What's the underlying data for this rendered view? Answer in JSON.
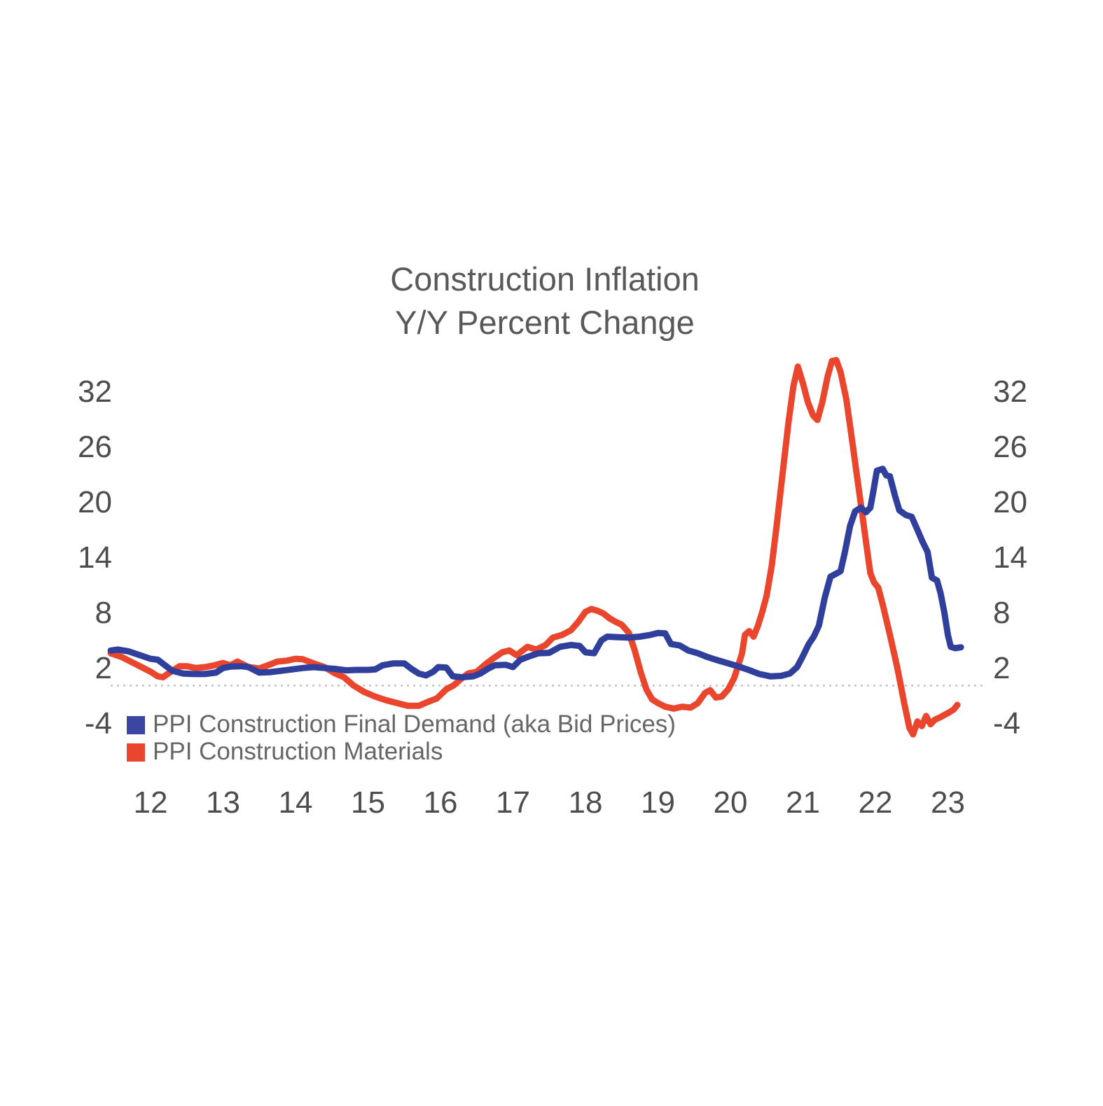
{
  "title": {
    "line1": "Construction Inflation",
    "line2": "Y/Y Percent Change"
  },
  "legend": [
    {
      "label": "PPI Construction Final Demand (aka Bid Prices)",
      "color": "#3a46a0"
    },
    {
      "label": "PPI Construction Materials",
      "color": "#ea452d"
    }
  ],
  "colors": {
    "background": "#ffffff",
    "title_text": "#595959",
    "tick_text": "#4d4d4d",
    "legend_text": "#666666",
    "zero_line": "#c4c4c4",
    "series_blue": "#2f3f9b",
    "series_red": "#ea452d"
  },
  "chart_data": {
    "type": "line",
    "title": "Construction Inflation Y/Y Percent Change",
    "xlabel": "",
    "ylabel": "Y/Y Percent Change",
    "x_ticks": [
      "12",
      "13",
      "14",
      "15",
      "16",
      "17",
      "18",
      "19",
      "20",
      "21",
      "22",
      "23"
    ],
    "x_tick_values": [
      12,
      13,
      14,
      15,
      16,
      17,
      18,
      19,
      20,
      21,
      22,
      23
    ],
    "y_ticks": [
      "32",
      "26",
      "20",
      "14",
      "8",
      "2",
      "-4"
    ],
    "y_tick_values": [
      32,
      26,
      20,
      14,
      8,
      2,
      -4
    ],
    "ylim": [
      -7,
      37
    ],
    "xlim": [
      11.4,
      23.3
    ],
    "grid": false,
    "zero_line": true,
    "legend_position": "bottom-left",
    "y_axis_sides": "both",
    "series": [
      {
        "name": "PPI Construction Final Demand (aka Bid Prices)",
        "color": "#2f3f9b",
        "points": [
          [
            11.45,
            3.8
          ],
          [
            11.55,
            3.9
          ],
          [
            11.7,
            3.7
          ],
          [
            11.85,
            3.3
          ],
          [
            12.0,
            2.9
          ],
          [
            12.1,
            2.8
          ],
          [
            12.2,
            2.2
          ],
          [
            12.3,
            1.6
          ],
          [
            12.45,
            1.3
          ],
          [
            12.6,
            1.25
          ],
          [
            12.75,
            1.25
          ],
          [
            12.9,
            1.4
          ],
          [
            13.0,
            1.9
          ],
          [
            13.1,
            2.05
          ],
          [
            13.25,
            2.1
          ],
          [
            13.35,
            2.0
          ],
          [
            13.5,
            1.4
          ],
          [
            13.65,
            1.45
          ],
          [
            13.8,
            1.6
          ],
          [
            13.95,
            1.75
          ],
          [
            14.1,
            1.9
          ],
          [
            14.25,
            2.0
          ],
          [
            14.4,
            1.9
          ],
          [
            14.55,
            1.8
          ],
          [
            14.7,
            1.65
          ],
          [
            14.85,
            1.7
          ],
          [
            15.0,
            1.7
          ],
          [
            15.1,
            1.75
          ],
          [
            15.2,
            2.2
          ],
          [
            15.35,
            2.4
          ],
          [
            15.5,
            2.4
          ],
          [
            15.6,
            1.8
          ],
          [
            15.7,
            1.3
          ],
          [
            15.8,
            1.1
          ],
          [
            15.9,
            1.5
          ],
          [
            15.97,
            2.0
          ],
          [
            16.08,
            1.95
          ],
          [
            16.17,
            1.0
          ],
          [
            16.3,
            0.9
          ],
          [
            16.45,
            1.0
          ],
          [
            16.55,
            1.3
          ],
          [
            16.65,
            1.8
          ],
          [
            16.75,
            2.2
          ],
          [
            16.9,
            2.25
          ],
          [
            17.0,
            2.0
          ],
          [
            17.1,
            2.8
          ],
          [
            17.2,
            3.1
          ],
          [
            17.35,
            3.5
          ],
          [
            17.5,
            3.55
          ],
          [
            17.65,
            4.2
          ],
          [
            17.8,
            4.4
          ],
          [
            17.92,
            4.3
          ],
          [
            18.0,
            3.6
          ],
          [
            18.12,
            3.5
          ],
          [
            18.22,
            4.9
          ],
          [
            18.3,
            5.3
          ],
          [
            18.45,
            5.25
          ],
          [
            18.6,
            5.2
          ],
          [
            18.75,
            5.3
          ],
          [
            18.9,
            5.5
          ],
          [
            19.0,
            5.7
          ],
          [
            19.1,
            5.65
          ],
          [
            19.18,
            4.5
          ],
          [
            19.3,
            4.35
          ],
          [
            19.42,
            3.8
          ],
          [
            19.55,
            3.5
          ],
          [
            19.68,
            3.1
          ],
          [
            19.8,
            2.8
          ],
          [
            19.95,
            2.45
          ],
          [
            20.1,
            2.1
          ],
          [
            20.25,
            1.7
          ],
          [
            20.4,
            1.25
          ],
          [
            20.55,
            1.0
          ],
          [
            20.7,
            1.05
          ],
          [
            20.82,
            1.3
          ],
          [
            20.92,
            2.0
          ],
          [
            21.0,
            3.2
          ],
          [
            21.08,
            4.5
          ],
          [
            21.15,
            5.3
          ],
          [
            21.22,
            6.5
          ],
          [
            21.3,
            9.5
          ],
          [
            21.38,
            11.8
          ],
          [
            21.45,
            12.1
          ],
          [
            21.52,
            12.4
          ],
          [
            21.58,
            14.5
          ],
          [
            21.65,
            17.3
          ],
          [
            21.72,
            18.9
          ],
          [
            21.8,
            19.3
          ],
          [
            21.87,
            18.8
          ],
          [
            21.93,
            19.3
          ],
          [
            21.97,
            21.0
          ],
          [
            22.02,
            23.3
          ],
          [
            22.1,
            23.5
          ],
          [
            22.15,
            22.8
          ],
          [
            22.2,
            22.7
          ],
          [
            22.27,
            20.6
          ],
          [
            22.33,
            19.0
          ],
          [
            22.42,
            18.5
          ],
          [
            22.5,
            18.3
          ],
          [
            22.58,
            16.9
          ],
          [
            22.65,
            15.6
          ],
          [
            22.72,
            14.5
          ],
          [
            22.78,
            11.7
          ],
          [
            22.85,
            11.4
          ],
          [
            22.9,
            10.0
          ],
          [
            22.95,
            8.0
          ],
          [
            23.0,
            5.5
          ],
          [
            23.04,
            4.2
          ],
          [
            23.1,
            4.05
          ],
          [
            23.18,
            4.15
          ]
        ]
      },
      {
        "name": "PPI Construction Materials",
        "color": "#ea452d",
        "points": [
          [
            11.45,
            3.5
          ],
          [
            11.6,
            3.1
          ],
          [
            11.75,
            2.5
          ],
          [
            11.9,
            1.9
          ],
          [
            12.0,
            1.5
          ],
          [
            12.1,
            1.0
          ],
          [
            12.17,
            0.9
          ],
          [
            12.28,
            1.5
          ],
          [
            12.4,
            2.1
          ],
          [
            12.5,
            2.1
          ],
          [
            12.62,
            1.9
          ],
          [
            12.75,
            2.0
          ],
          [
            12.88,
            2.2
          ],
          [
            13.0,
            2.45
          ],
          [
            13.1,
            2.2
          ],
          [
            13.2,
            2.6
          ],
          [
            13.35,
            2.0
          ],
          [
            13.5,
            1.85
          ],
          [
            13.62,
            2.2
          ],
          [
            13.75,
            2.6
          ],
          [
            13.88,
            2.7
          ],
          [
            14.0,
            2.9
          ],
          [
            14.1,
            2.85
          ],
          [
            14.25,
            2.4
          ],
          [
            14.4,
            2.0
          ],
          [
            14.55,
            1.3
          ],
          [
            14.67,
            0.9
          ],
          [
            14.8,
            0.0
          ],
          [
            14.95,
            -0.7
          ],
          [
            15.1,
            -1.2
          ],
          [
            15.25,
            -1.6
          ],
          [
            15.4,
            -1.9
          ],
          [
            15.55,
            -2.2
          ],
          [
            15.7,
            -2.2
          ],
          [
            15.85,
            -1.7
          ],
          [
            15.95,
            -1.4
          ],
          [
            16.08,
            -0.4
          ],
          [
            16.18,
            0.0
          ],
          [
            16.28,
            0.7
          ],
          [
            16.38,
            1.3
          ],
          [
            16.5,
            1.5
          ],
          [
            16.62,
            2.3
          ],
          [
            16.72,
            2.9
          ],
          [
            16.85,
            3.6
          ],
          [
            16.95,
            3.8
          ],
          [
            17.05,
            3.3
          ],
          [
            17.2,
            4.2
          ],
          [
            17.32,
            3.9
          ],
          [
            17.45,
            4.4
          ],
          [
            17.55,
            5.2
          ],
          [
            17.68,
            5.5
          ],
          [
            17.8,
            6.0
          ],
          [
            17.9,
            6.9
          ],
          [
            18.0,
            8.0
          ],
          [
            18.08,
            8.3
          ],
          [
            18.17,
            8.1
          ],
          [
            18.25,
            7.8
          ],
          [
            18.33,
            7.3
          ],
          [
            18.42,
            6.9
          ],
          [
            18.5,
            6.6
          ],
          [
            18.6,
            5.7
          ],
          [
            18.68,
            3.8
          ],
          [
            18.76,
            1.5
          ],
          [
            18.84,
            -0.4
          ],
          [
            18.92,
            -1.5
          ],
          [
            19.0,
            -1.9
          ],
          [
            19.1,
            -2.3
          ],
          [
            19.22,
            -2.5
          ],
          [
            19.33,
            -2.3
          ],
          [
            19.45,
            -2.4
          ],
          [
            19.55,
            -1.9
          ],
          [
            19.65,
            -0.8
          ],
          [
            19.72,
            -0.5
          ],
          [
            19.8,
            -1.3
          ],
          [
            19.88,
            -1.2
          ],
          [
            19.97,
            -0.4
          ],
          [
            20.05,
            0.8
          ],
          [
            20.1,
            2.0
          ],
          [
            20.16,
            3.5
          ],
          [
            20.2,
            5.5
          ],
          [
            20.26,
            5.9
          ],
          [
            20.32,
            5.3
          ],
          [
            20.38,
            6.5
          ],
          [
            20.44,
            8.0
          ],
          [
            20.5,
            9.8
          ],
          [
            20.57,
            13.0
          ],
          [
            20.64,
            17.5
          ],
          [
            20.72,
            23.0
          ],
          [
            20.8,
            28.5
          ],
          [
            20.87,
            32.5
          ],
          [
            20.93,
            34.6
          ],
          [
            21.0,
            32.8
          ],
          [
            21.07,
            30.7
          ],
          [
            21.14,
            29.3
          ],
          [
            21.2,
            28.8
          ],
          [
            21.27,
            30.8
          ],
          [
            21.34,
            33.5
          ],
          [
            21.4,
            35.2
          ],
          [
            21.46,
            35.3
          ],
          [
            21.52,
            34.0
          ],
          [
            21.6,
            31.0
          ],
          [
            21.68,
            26.5
          ],
          [
            21.75,
            22.5
          ],
          [
            21.82,
            18.5
          ],
          [
            21.88,
            15.0
          ],
          [
            21.93,
            12.2
          ],
          [
            21.98,
            11.2
          ],
          [
            22.04,
            10.6
          ],
          [
            22.1,
            8.8
          ],
          [
            22.2,
            5.5
          ],
          [
            22.3,
            2.0
          ],
          [
            22.4,
            -2.0
          ],
          [
            22.47,
            -4.6
          ],
          [
            22.52,
            -5.3
          ],
          [
            22.58,
            -3.9
          ],
          [
            22.64,
            -4.4
          ],
          [
            22.7,
            -3.3
          ],
          [
            22.76,
            -4.2
          ],
          [
            22.82,
            -3.7
          ],
          [
            22.88,
            -3.5
          ],
          [
            22.95,
            -3.2
          ],
          [
            23.02,
            -2.9
          ],
          [
            23.08,
            -2.6
          ],
          [
            23.13,
            -2.1
          ]
        ]
      }
    ]
  }
}
